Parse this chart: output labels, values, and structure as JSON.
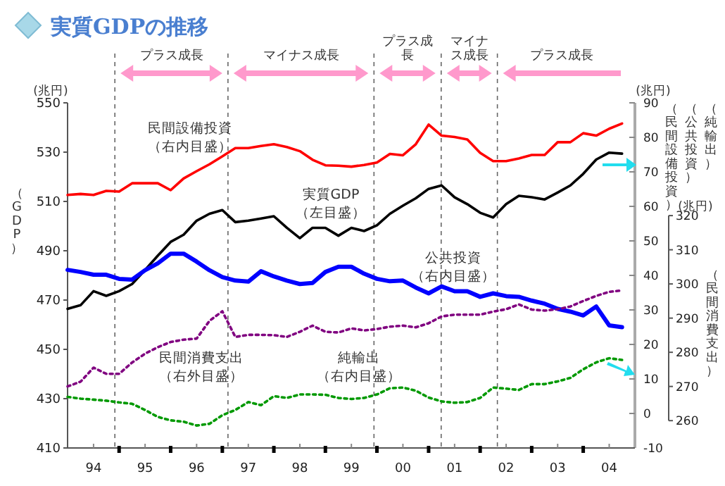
{
  "chart_data": {
    "type": "line",
    "title": "実質GDPの推移",
    "ylabel": "（GDP）",
    "y2label": "（民間設備投資）",
    "y3label": "（民間消費支出）",
    "annotations": [
      "プラス成長",
      "マイナス成長",
      "プラス成長",
      "マイナス成長",
      "プラス成長",
      "(兆円)",
      "(兆円)",
      "(兆円)",
      "（公共投資）",
      "（純輸出）"
    ],
    "x": [
      "1993-07-01",
      "1993-10-01",
      "1994-01-01",
      "1994-04-01",
      "1994-07-01",
      "1994-10-01",
      "1995-01-01",
      "1995-04-01",
      "1995-07-01",
      "1995-10-01",
      "1996-01-01",
      "1996-04-01",
      "1996-07-01",
      "1996-10-01",
      "1997-01-01",
      "1997-04-01",
      "1997-07-01",
      "1997-10-01",
      "1998-01-01",
      "1998-04-01",
      "1998-07-01",
      "1998-10-01",
      "1999-01-01",
      "1999-04-01",
      "1999-07-01",
      "1999-10-01",
      "2000-01-01",
      "2000-04-01",
      "2000-07-01",
      "2000-10-01",
      "2001-01-01",
      "2001-04-01",
      "2001-07-01",
      "2001-10-01",
      "2002-01-01",
      "2002-04-01",
      "2002-07-01",
      "2002-10-01",
      "2003-01-01",
      "2003-04-01",
      "2003-07-01",
      "2003-10-01",
      "2004-01-01",
      "2004-04-01"
    ],
    "xlim": [
      "1993-07-01",
      "2004-07-01"
    ],
    "xticks": [
      {
        "value": "1994-01-01",
        "label": "94"
      },
      {
        "value": "1995-01-01",
        "label": "95"
      },
      {
        "value": "1996-01-01",
        "label": "96"
      },
      {
        "value": "1997-01-01",
        "label": "97"
      },
      {
        "value": "1998-01-01",
        "label": "98"
      },
      {
        "value": "1999-01-01",
        "label": "99"
      },
      {
        "value": "2000-01-01",
        "label": "00"
      },
      {
        "value": "2001-01-01",
        "label": "01"
      },
      {
        "value": "2002-01-01",
        "label": "02"
      },
      {
        "value": "2003-01-01",
        "label": "03"
      },
      {
        "value": "2004-01-01",
        "label": "04"
      },
      {
        "value": "1994-07-01",
        "label": null
      },
      {
        "value": "1995-07-01",
        "label": null
      },
      {
        "value": "1996-07-01",
        "label": null
      },
      {
        "value": "1997-07-01",
        "label": null
      },
      {
        "value": "1998-07-01",
        "label": null
      },
      {
        "value": "1999-07-01",
        "label": null
      },
      {
        "value": "2000-07-01",
        "label": null
      },
      {
        "value": "2001-07-01",
        "label": null
      },
      {
        "value": "2002-07-01",
        "label": null
      },
      {
        "value": "2003-07-01",
        "label": null
      }
    ],
    "ylim": [
      410,
      550
    ],
    "yticks": [
      410,
      430,
      450,
      470,
      490,
      510,
      530,
      550
    ],
    "y2lim": [
      -10,
      90
    ],
    "y2ticks": [
      -10,
      0,
      10,
      20,
      30,
      40,
      50,
      60,
      70,
      80,
      90
    ],
    "y3lim": [
      252,
      353
    ],
    "y3ticks": [
      260,
      270,
      280,
      290,
      300,
      310,
      320
    ],
    "series": [
      {
        "name": "実質GDP（左目盛）",
        "axis": "y",
        "color": "#000000",
        "line_style": "solid",
        "values": [
          466.4,
          467.9,
          473.6,
          471.7,
          473.6,
          476.5,
          482.2,
          488,
          493.6,
          496.5,
          502.2,
          505,
          506.5,
          501.6,
          502.2,
          503.1,
          504,
          499.3,
          495.1,
          499.3,
          499.3,
          496.1,
          499.3,
          498,
          500.3,
          505,
          508.3,
          511.3,
          515.1,
          516.5,
          511.7,
          508.9,
          505.4,
          503.5,
          508.9,
          512.3,
          511.7,
          510.8,
          513.6,
          516.5,
          521.2,
          527,
          529.8,
          529.4
        ]
      },
      {
        "name": "民間設備投資（右内目盛）",
        "axis": "y2",
        "color": "#ff0000",
        "line_style": "solid",
        "values": [
          63.3,
          63.6,
          63.3,
          64.5,
          64.3,
          66.7,
          66.7,
          66.7,
          64.7,
          68.1,
          70.2,
          72.2,
          74.5,
          76.9,
          76.9,
          77.5,
          78,
          77.2,
          76,
          73.5,
          71.9,
          71.8,
          71.5,
          72,
          72.7,
          75.2,
          74.8,
          78,
          83.7,
          80.5,
          80.1,
          79.4,
          75.5,
          73.1,
          73.1,
          73.9,
          74.9,
          74.9,
          78.6,
          78.6,
          81.2,
          80.5,
          82.5,
          84
        ]
      },
      {
        "name": "公共投資（右内目盛）",
        "axis": "y2",
        "color": "#0000ff",
        "line_style": "solid",
        "values": [
          41.6,
          41,
          40.2,
          40.2,
          39,
          38.8,
          41.5,
          43.5,
          46.3,
          46.3,
          44,
          41.5,
          39.5,
          38.5,
          38.2,
          41.2,
          39.7,
          38.5,
          37.5,
          37.8,
          41,
          42.5,
          42.5,
          40.5,
          39,
          38.3,
          38.5,
          36.5,
          34.8,
          36.8,
          35.4,
          35.4,
          33.8,
          34.8,
          34,
          33.8,
          32.7,
          31.8,
          30.3,
          29.5,
          28.4,
          31,
          25.5,
          25
        ]
      },
      {
        "name": "民間消費支出（右外目盛）",
        "axis": "y3",
        "color": "#800080",
        "line_style": "dotted",
        "values": [
          270,
          271.4,
          275.5,
          273.7,
          273.7,
          277,
          279.6,
          281.5,
          283,
          283.7,
          284,
          289.2,
          292,
          284.5,
          285.1,
          285.1,
          285,
          284.5,
          286,
          287.8,
          286,
          285.8,
          287,
          286.4,
          286.8,
          287.5,
          287.8,
          287.3,
          288.5,
          290.5,
          291,
          291,
          291,
          291.9,
          292.6,
          294,
          292.5,
          292.2,
          292.6,
          293.4,
          295,
          296.5,
          297.7,
          298.1
        ]
      },
      {
        "name": "純輸出（右内目盛）",
        "axis": "y2",
        "color": "#009900",
        "line_style": "dotted",
        "values": [
          4.8,
          4.3,
          4,
          3.7,
          3.2,
          2.8,
          1,
          -1,
          -2,
          -2.4,
          -3.5,
          -3,
          -0.5,
          1,
          3.3,
          2.4,
          5,
          4.5,
          5.5,
          5.5,
          5.4,
          4.5,
          4.2,
          4.5,
          5.5,
          7.3,
          7.5,
          6.6,
          4.6,
          3.5,
          3.1,
          3.3,
          4.5,
          7.5,
          7.2,
          6.8,
          8.5,
          8.5,
          9.3,
          10.3,
          12.8,
          14.8,
          16,
          15.5
        ]
      }
    ],
    "ref_lines": [
      {
        "axis": "x",
        "value": "1994-06-01",
        "color": "#666666",
        "line_style": "dashed"
      },
      {
        "axis": "x",
        "value": "1996-08-10",
        "color": "#666666",
        "line_style": "dashed"
      },
      {
        "axis": "x",
        "value": "1999-06-10",
        "color": "#666666",
        "line_style": "dashed"
      },
      {
        "axis": "x",
        "value": "2000-09-28",
        "color": "#666666",
        "line_style": "dashed"
      },
      {
        "axis": "x",
        "value": "2001-10-31",
        "color": "#666666",
        "line_style": "dashed"
      }
    ],
    "grid": false
  }
}
